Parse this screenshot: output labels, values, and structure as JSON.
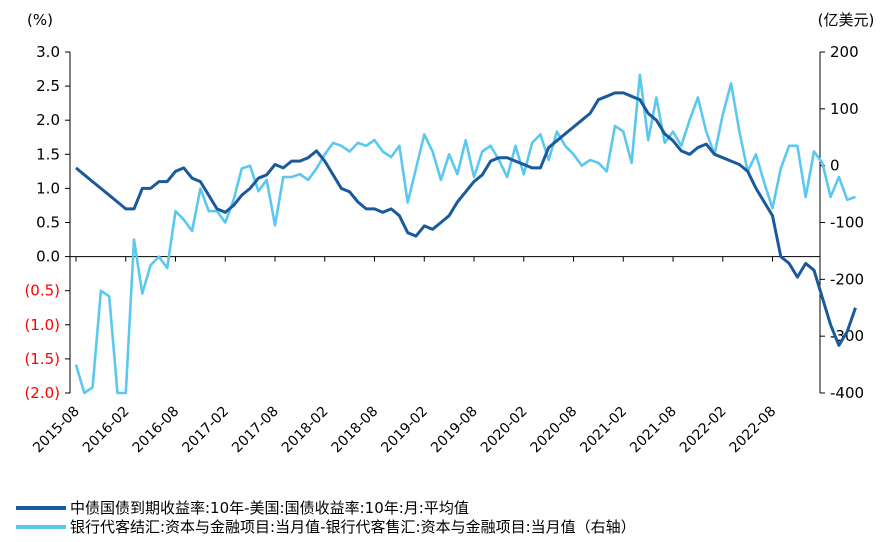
{
  "chart_data": {
    "type": "line",
    "left_axis": {
      "unit": "(%)",
      "ticks": [
        "3.0",
        "2.5",
        "2.0",
        "1.5",
        "1.0",
        "0.5",
        "0.0",
        "(0.5)",
        "(1.0)",
        "(1.5)",
        "(2.0)"
      ],
      "ylim": [
        -2.0,
        3.0
      ],
      "negative_color": "#ff0000"
    },
    "right_axis": {
      "unit": "(亿美元)",
      "ticks": [
        "200",
        "100",
        "0",
        "-100",
        "-200",
        "-300",
        "-400"
      ],
      "ylim": [
        -400,
        200
      ]
    },
    "x_ticks": [
      "2015-08",
      "2016-02",
      "2016-08",
      "2017-02",
      "2017-08",
      "2018-02",
      "2018-08",
      "2019-02",
      "2019-08",
      "2020-02",
      "2020-08",
      "2021-02",
      "2021-08",
      "2022-02",
      "2022-08"
    ],
    "x_start": "2015-08",
    "x_end": "2023-01",
    "series": [
      {
        "name": "中债国债到期收益率:10年-美国:国债收益率:10年:月:平均值",
        "axis": "left",
        "color": "#1a5a9c",
        "values": [
          1.3,
          1.2,
          1.1,
          1.0,
          0.9,
          0.8,
          0.7,
          0.7,
          1.0,
          1.0,
          1.1,
          1.1,
          1.25,
          1.3,
          1.15,
          1.1,
          0.9,
          0.7,
          0.65,
          0.75,
          0.9,
          1.0,
          1.15,
          1.2,
          1.35,
          1.3,
          1.4,
          1.4,
          1.45,
          1.55,
          1.4,
          1.2,
          1.0,
          0.95,
          0.8,
          0.7,
          0.7,
          0.65,
          0.7,
          0.6,
          0.35,
          0.3,
          0.45,
          0.4,
          0.5,
          0.6,
          0.8,
          0.95,
          1.1,
          1.2,
          1.4,
          1.45,
          1.45,
          1.4,
          1.35,
          1.3,
          1.3,
          1.6,
          1.7,
          1.8,
          1.9,
          2.0,
          2.1,
          2.3,
          2.35,
          2.4,
          2.4,
          2.35,
          2.3,
          2.1,
          2.0,
          1.8,
          1.7,
          1.55,
          1.5,
          1.6,
          1.65,
          1.5,
          1.45,
          1.4,
          1.35,
          1.25,
          1.0,
          0.8,
          0.6,
          0.0,
          -0.1,
          -0.3,
          -0.1,
          -0.2,
          -0.6,
          -1.0,
          -1.3,
          -1.1,
          -0.75
        ]
      },
      {
        "name": "银行代客结汇:资本与金融项目:当月值-银行代客售汇:资本与金融项目:当月值（右轴）",
        "axis": "right",
        "color": "#5bc8ef",
        "values": [
          -350,
          -400,
          -390,
          -220,
          -230,
          -400,
          -400,
          -130,
          -225,
          -175,
          -160,
          -180,
          -80,
          -95,
          -115,
          -40,
          -80,
          -80,
          -100,
          -60,
          -5,
          0,
          -45,
          -25,
          -105,
          -20,
          -20,
          -15,
          -25,
          -5,
          20,
          40,
          35,
          25,
          40,
          35,
          45,
          25,
          15,
          35,
          -65,
          -5,
          55,
          25,
          -25,
          20,
          -15,
          45,
          -20,
          25,
          35,
          10,
          -20,
          35,
          -15,
          40,
          55,
          10,
          60,
          35,
          20,
          0,
          10,
          5,
          -10,
          70,
          60,
          5,
          160,
          45,
          120,
          40,
          60,
          35,
          80,
          120,
          60,
          20,
          90,
          145,
          60,
          -10,
          20,
          -30,
          -75,
          -5,
          35,
          35,
          -55,
          25,
          5,
          -55,
          -20,
          -60,
          -55
        ]
      }
    ],
    "legend": {
      "position": "bottom",
      "entries": [
        "中债国债到期收益率:10年-美国:国债收益率:10年:月:平均值",
        "银行代客结汇:资本与金融项目:当月值-银行代客售汇:资本与金融项目:当月值（右轴）"
      ]
    }
  }
}
